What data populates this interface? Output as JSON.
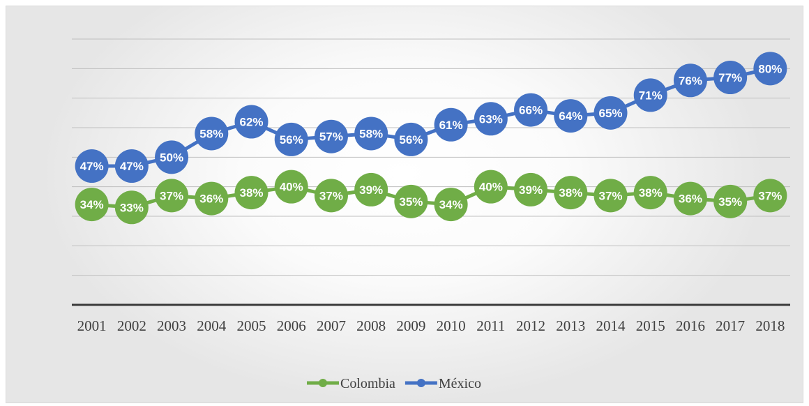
{
  "chart_data": {
    "type": "line",
    "categories": [
      "2001",
      "2002",
      "2003",
      "2004",
      "2005",
      "2006",
      "2007",
      "2008",
      "2009",
      "2010",
      "2011",
      "2012",
      "2013",
      "2014",
      "2015",
      "2016",
      "2017",
      "2018"
    ],
    "series": [
      {
        "name": "Colombia",
        "color": "#70ad47",
        "values": [
          34,
          33,
          37,
          36,
          38,
          40,
          37,
          39,
          35,
          34,
          40,
          39,
          38,
          37,
          38,
          36,
          35,
          37
        ],
        "labels": [
          "34%",
          "33%",
          "37%",
          "36%",
          "38%",
          "40%",
          "37%",
          "39%",
          "35%",
          "34%",
          "40%",
          "39%",
          "38%",
          "37%",
          "38%",
          "36%",
          "35%",
          "37%"
        ]
      },
      {
        "name": "México",
        "color": "#4472c4",
        "values": [
          47,
          47,
          50,
          58,
          62,
          56,
          57,
          58,
          56,
          61,
          63,
          66,
          64,
          65,
          71,
          76,
          77,
          80
        ],
        "labels": [
          "47%",
          "47%",
          "50%",
          "58%",
          "62%",
          "56%",
          "57%",
          "58%",
          "56%",
          "61%",
          "63%",
          "66%",
          "64%",
          "65%",
          "71%",
          "76%",
          "77%",
          "80%"
        ]
      }
    ],
    "ylim": [
      0,
      90
    ],
    "grid": true,
    "legend_position": "bottom"
  }
}
